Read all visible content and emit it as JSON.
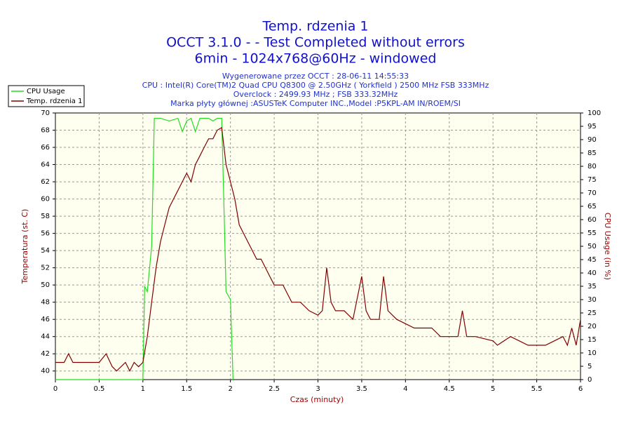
{
  "chart_data": {
    "type": "line",
    "title": "Temp. rdzenia 1",
    "subtitle": [
      "OCCT 3.1.0 -  - Test Completed without errors",
      "6min - 1024x768@60Hz - windowed"
    ],
    "info": [
      "Wygenerowane przez OCCT : 28-06-11 14:55:33",
      "CPU : Intel(R) Core(TM)2 Quad CPU Q8300 @ 2.50GHz ( Yorkfield ) 2500 MHz FSB 333MHz",
      "Overclock : 2499.93 MHz ; FSB 333.32MHz",
      "Marka płyty głównej :ASUSTeK Computer INC.,Model :P5KPL-AM IN/ROEM/SI"
    ],
    "x_label": "Czas (minuty)",
    "y_label": "Temperatura (st. C)",
    "y2_label": "CPU Usage (in %)",
    "xlim": [
      0,
      6
    ],
    "xticks": [
      0,
      0.5,
      1,
      1.5,
      2,
      2.5,
      3,
      3.5,
      4,
      4.5,
      5,
      5.5,
      6
    ],
    "ylim": [
      39,
      70
    ],
    "yticks": [
      40,
      42,
      44,
      46,
      48,
      50,
      52,
      54,
      56,
      58,
      60,
      62,
      64,
      66,
      68,
      70
    ],
    "y2lim": [
      0,
      100
    ],
    "y2ticks": [
      0,
      5,
      10,
      15,
      20,
      25,
      30,
      35,
      40,
      45,
      50,
      55,
      60,
      65,
      70,
      75,
      80,
      85,
      90,
      95,
      100
    ],
    "grid": true,
    "legend": "top-left",
    "series": [
      {
        "name": "CPU Usage",
        "color": "#22dd22",
        "axis": "y2",
        "x": [
          0,
          1.0,
          1.02,
          1.05,
          1.1,
          1.13,
          1.2,
          1.3,
          1.4,
          1.45,
          1.5,
          1.55,
          1.6,
          1.65,
          1.75,
          1.8,
          1.85,
          1.9,
          1.93,
          1.95,
          2.0,
          2.03
        ],
        "values": [
          0,
          0,
          35,
          33,
          50,
          98,
          98,
          97,
          98,
          93,
          97,
          98,
          93,
          98,
          98,
          97,
          98,
          98,
          60,
          33,
          30,
          0
        ]
      },
      {
        "name": "Temp. rdzenia 1",
        "color": "#800000",
        "axis": "y",
        "x": [
          0,
          0.1,
          0.15,
          0.2,
          0.5,
          0.58,
          0.65,
          0.7,
          0.8,
          0.85,
          0.9,
          0.95,
          1.0,
          1.05,
          1.1,
          1.15,
          1.2,
          1.25,
          1.3,
          1.35,
          1.4,
          1.45,
          1.5,
          1.55,
          1.6,
          1.65,
          1.7,
          1.75,
          1.8,
          1.85,
          1.9,
          1.95,
          2.0,
          2.05,
          2.1,
          2.15,
          2.2,
          2.25,
          2.3,
          2.35,
          2.4,
          2.45,
          2.5,
          2.6,
          2.65,
          2.7,
          2.8,
          2.9,
          3.0,
          3.05,
          3.1,
          3.15,
          3.2,
          3.3,
          3.4,
          3.5,
          3.55,
          3.6,
          3.7,
          3.75,
          3.8,
          3.9,
          4.0,
          4.1,
          4.3,
          4.4,
          4.6,
          4.65,
          4.7,
          4.8,
          5.0,
          5.05,
          5.2,
          5.3,
          5.4,
          5.6,
          5.7,
          5.8,
          5.85,
          5.9,
          5.95,
          6.0
        ],
        "values": [
          41,
          41,
          42,
          41,
          41,
          42,
          40.5,
          40,
          41,
          40,
          41,
          40.5,
          41,
          44,
          48,
          52,
          55,
          57,
          59,
          60,
          61,
          62,
          63,
          62,
          64,
          65,
          66,
          67,
          67,
          68,
          68.3,
          64,
          62,
          60,
          57,
          56,
          55,
          54,
          53,
          53,
          52,
          51,
          50,
          50,
          49,
          48,
          48,
          47,
          46.5,
          47,
          52,
          48,
          47,
          47,
          46,
          51,
          47,
          46,
          46,
          51,
          47,
          46,
          45.5,
          45,
          45,
          44,
          44,
          47,
          44,
          44,
          43.5,
          43,
          44,
          43.5,
          43,
          43,
          43.5,
          44,
          43,
          45,
          43,
          46
        ]
      }
    ]
  }
}
